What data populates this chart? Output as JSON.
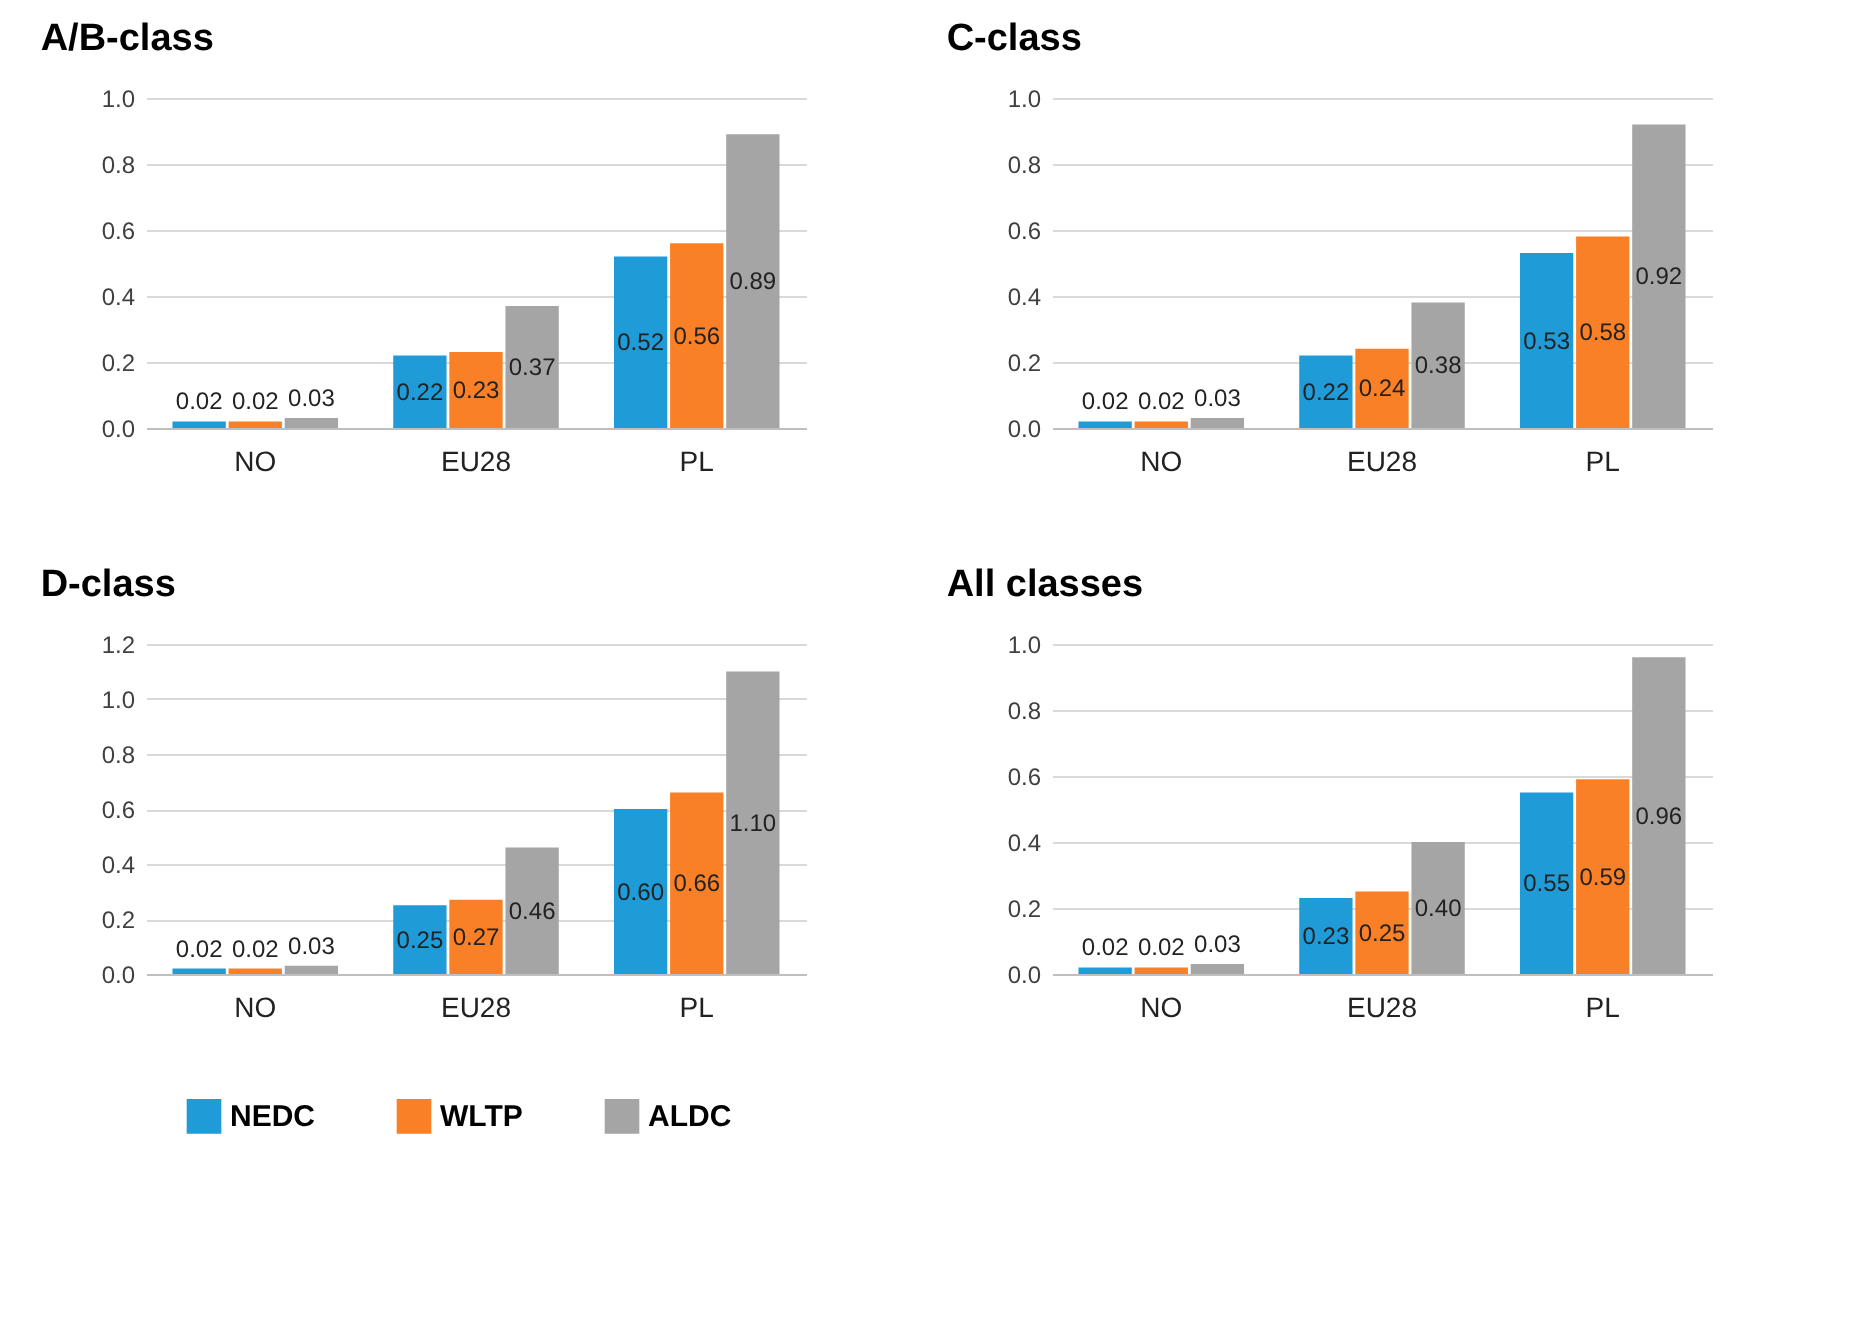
{
  "chart_data": [
    {
      "type": "bar",
      "title": "A/B-class",
      "categories": [
        "NO",
        "EU28",
        "PL"
      ],
      "series": [
        {
          "name": "NEDC",
          "color": "#1f9bd8",
          "values": [
            0.02,
            0.22,
            0.52
          ],
          "value_labels": [
            "0.02",
            "0.22",
            "0.52"
          ]
        },
        {
          "name": "WLTP",
          "color": "#f98027",
          "values": [
            0.02,
            0.23,
            0.56
          ],
          "value_labels": [
            "0.02",
            "0.23",
            "0.56"
          ]
        },
        {
          "name": "ALDC",
          "color": "#a5a5a5",
          "values": [
            0.03,
            0.37,
            0.89
          ],
          "value_labels": [
            "0.03",
            "0.37",
            "0.89"
          ]
        }
      ],
      "ylim": [
        0,
        1.0
      ],
      "yticks": [
        {
          "value": 0,
          "label": "0.0"
        },
        {
          "value": 0.2,
          "label": "0.2"
        },
        {
          "value": 0.4,
          "label": "0.4"
        },
        {
          "value": 0.6,
          "label": "0.6"
        },
        {
          "value": 0.8,
          "label": "0.8"
        },
        {
          "value": 1.0,
          "label": "1.0"
        }
      ],
      "grid": "y",
      "legend": "bottom"
    },
    {
      "type": "bar",
      "title": "C-class",
      "categories": [
        "NO",
        "EU28",
        "PL"
      ],
      "series": [
        {
          "name": "NEDC",
          "color": "#1f9bd8",
          "values": [
            0.02,
            0.22,
            0.53
          ],
          "value_labels": [
            "0.02",
            "0.22",
            "0.53"
          ]
        },
        {
          "name": "WLTP",
          "color": "#f98027",
          "values": [
            0.02,
            0.24,
            0.58
          ],
          "value_labels": [
            "0.02",
            "0.24",
            "0.58"
          ]
        },
        {
          "name": "ALDC",
          "color": "#a5a5a5",
          "values": [
            0.03,
            0.38,
            0.92
          ],
          "value_labels": [
            "0.03",
            "0.38",
            "0.92"
          ]
        }
      ],
      "ylim": [
        0,
        1.0
      ],
      "yticks": [
        {
          "value": 0,
          "label": "0.0"
        },
        {
          "value": 0.2,
          "label": "0.2"
        },
        {
          "value": 0.4,
          "label": "0.4"
        },
        {
          "value": 0.6,
          "label": "0.6"
        },
        {
          "value": 0.8,
          "label": "0.8"
        },
        {
          "value": 1.0,
          "label": "1.0"
        }
      ],
      "grid": "y",
      "legend": "bottom"
    },
    {
      "type": "bar",
      "title": "D-class",
      "categories": [
        "NO",
        "EU28",
        "PL"
      ],
      "series": [
        {
          "name": "NEDC",
          "color": "#1f9bd8",
          "values": [
            0.02,
            0.25,
            0.6
          ],
          "value_labels": [
            "0.02",
            "0.25",
            "0.60"
          ]
        },
        {
          "name": "WLTP",
          "color": "#f98027",
          "values": [
            0.02,
            0.27,
            0.66
          ],
          "value_labels": [
            "0.02",
            "0.27",
            "0.66"
          ]
        },
        {
          "name": "ALDC",
          "color": "#a5a5a5",
          "values": [
            0.03,
            0.46,
            1.1
          ],
          "value_labels": [
            "0.03",
            "0.46",
            "1.10"
          ]
        }
      ],
      "ylim": [
        0,
        1.2
      ],
      "yticks": [
        {
          "value": 0,
          "label": "0.0"
        },
        {
          "value": 0.2,
          "label": "0.2"
        },
        {
          "value": 0.4,
          "label": "0.4"
        },
        {
          "value": 0.6,
          "label": "0.6"
        },
        {
          "value": 0.8,
          "label": "0.8"
        },
        {
          "value": 1.0,
          "label": "1.0"
        },
        {
          "value": 1.2,
          "label": "1.2"
        }
      ],
      "grid": "y",
      "legend": "bottom"
    },
    {
      "type": "bar",
      "title": "All classes",
      "categories": [
        "NO",
        "EU28",
        "PL"
      ],
      "series": [
        {
          "name": "NEDC",
          "color": "#1f9bd8",
          "values": [
            0.02,
            0.23,
            0.55
          ],
          "value_labels": [
            "0.02",
            "0.23",
            "0.55"
          ]
        },
        {
          "name": "WLTP",
          "color": "#f98027",
          "values": [
            0.02,
            0.25,
            0.59
          ],
          "value_labels": [
            "0.02",
            "0.25",
            "0.59"
          ]
        },
        {
          "name": "ALDC",
          "color": "#a5a5a5",
          "values": [
            0.03,
            0.4,
            0.96
          ],
          "value_labels": [
            "0.03",
            "0.40",
            "0.96"
          ]
        }
      ],
      "ylim": [
        0,
        1.0
      ],
      "yticks": [
        {
          "value": 0,
          "label": "0.0"
        },
        {
          "value": 0.2,
          "label": "0.2"
        },
        {
          "value": 0.4,
          "label": "0.4"
        },
        {
          "value": 0.6,
          "label": "0.6"
        },
        {
          "value": 0.8,
          "label": "0.8"
        },
        {
          "value": 1.0,
          "label": "1.0"
        }
      ],
      "grid": "y",
      "legend": "bottom"
    }
  ]
}
